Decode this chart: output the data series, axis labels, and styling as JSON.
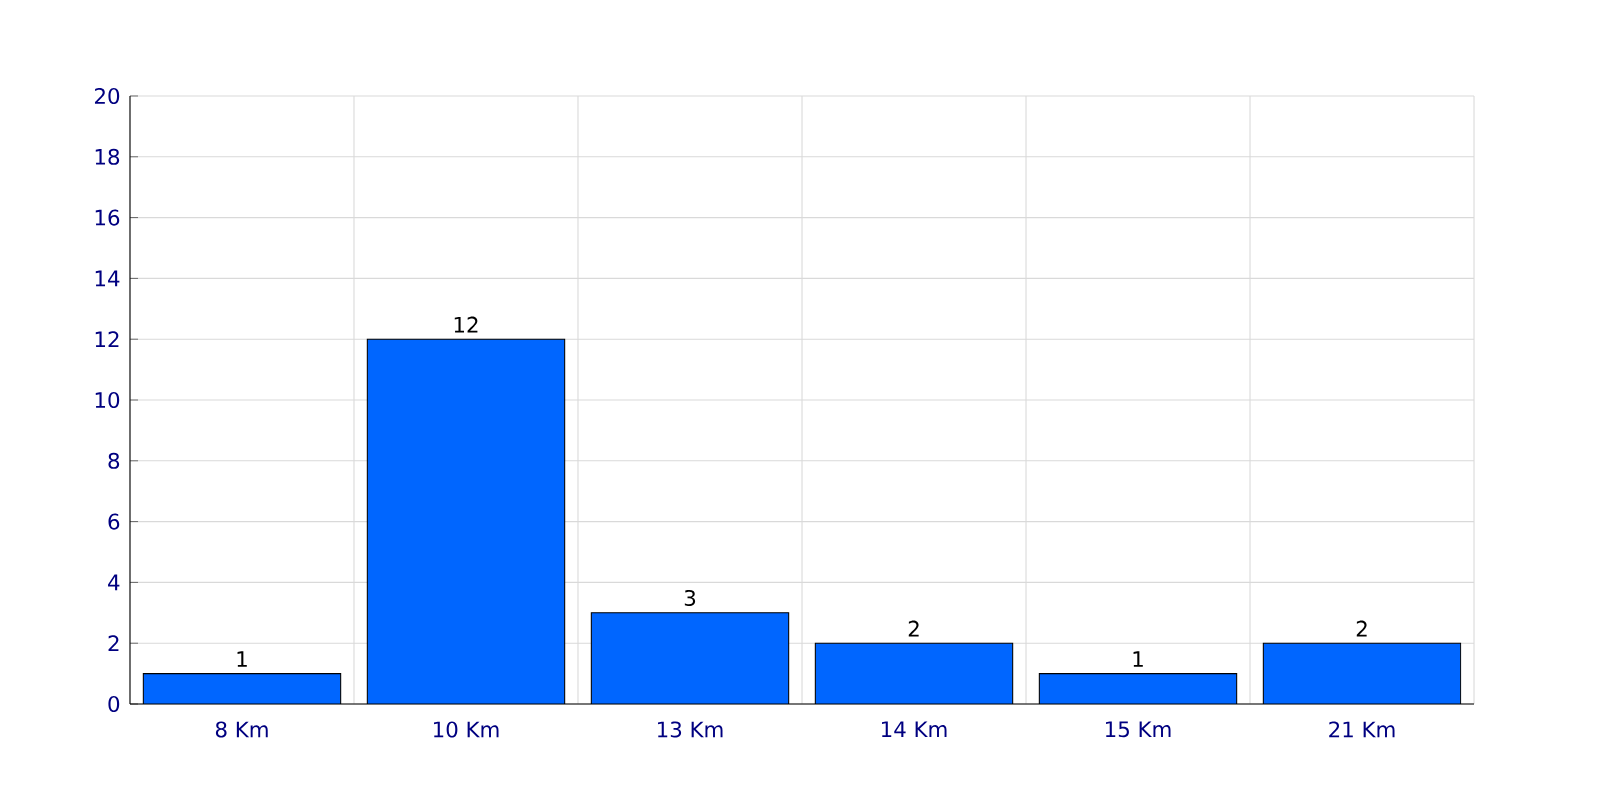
{
  "chart_data": {
    "type": "bar",
    "categories": [
      "8 Km",
      "10 Km",
      "13 Km",
      "14 Km",
      "15 Km",
      "21 Km"
    ],
    "values": [
      1,
      12,
      3,
      2,
      1,
      2
    ],
    "color": "#0066ff",
    "ylim": [
      0,
      20
    ],
    "yticks": [
      0,
      2,
      4,
      6,
      8,
      10,
      12,
      14,
      16,
      18,
      20
    ],
    "grid": true,
    "data_labels": true
  }
}
